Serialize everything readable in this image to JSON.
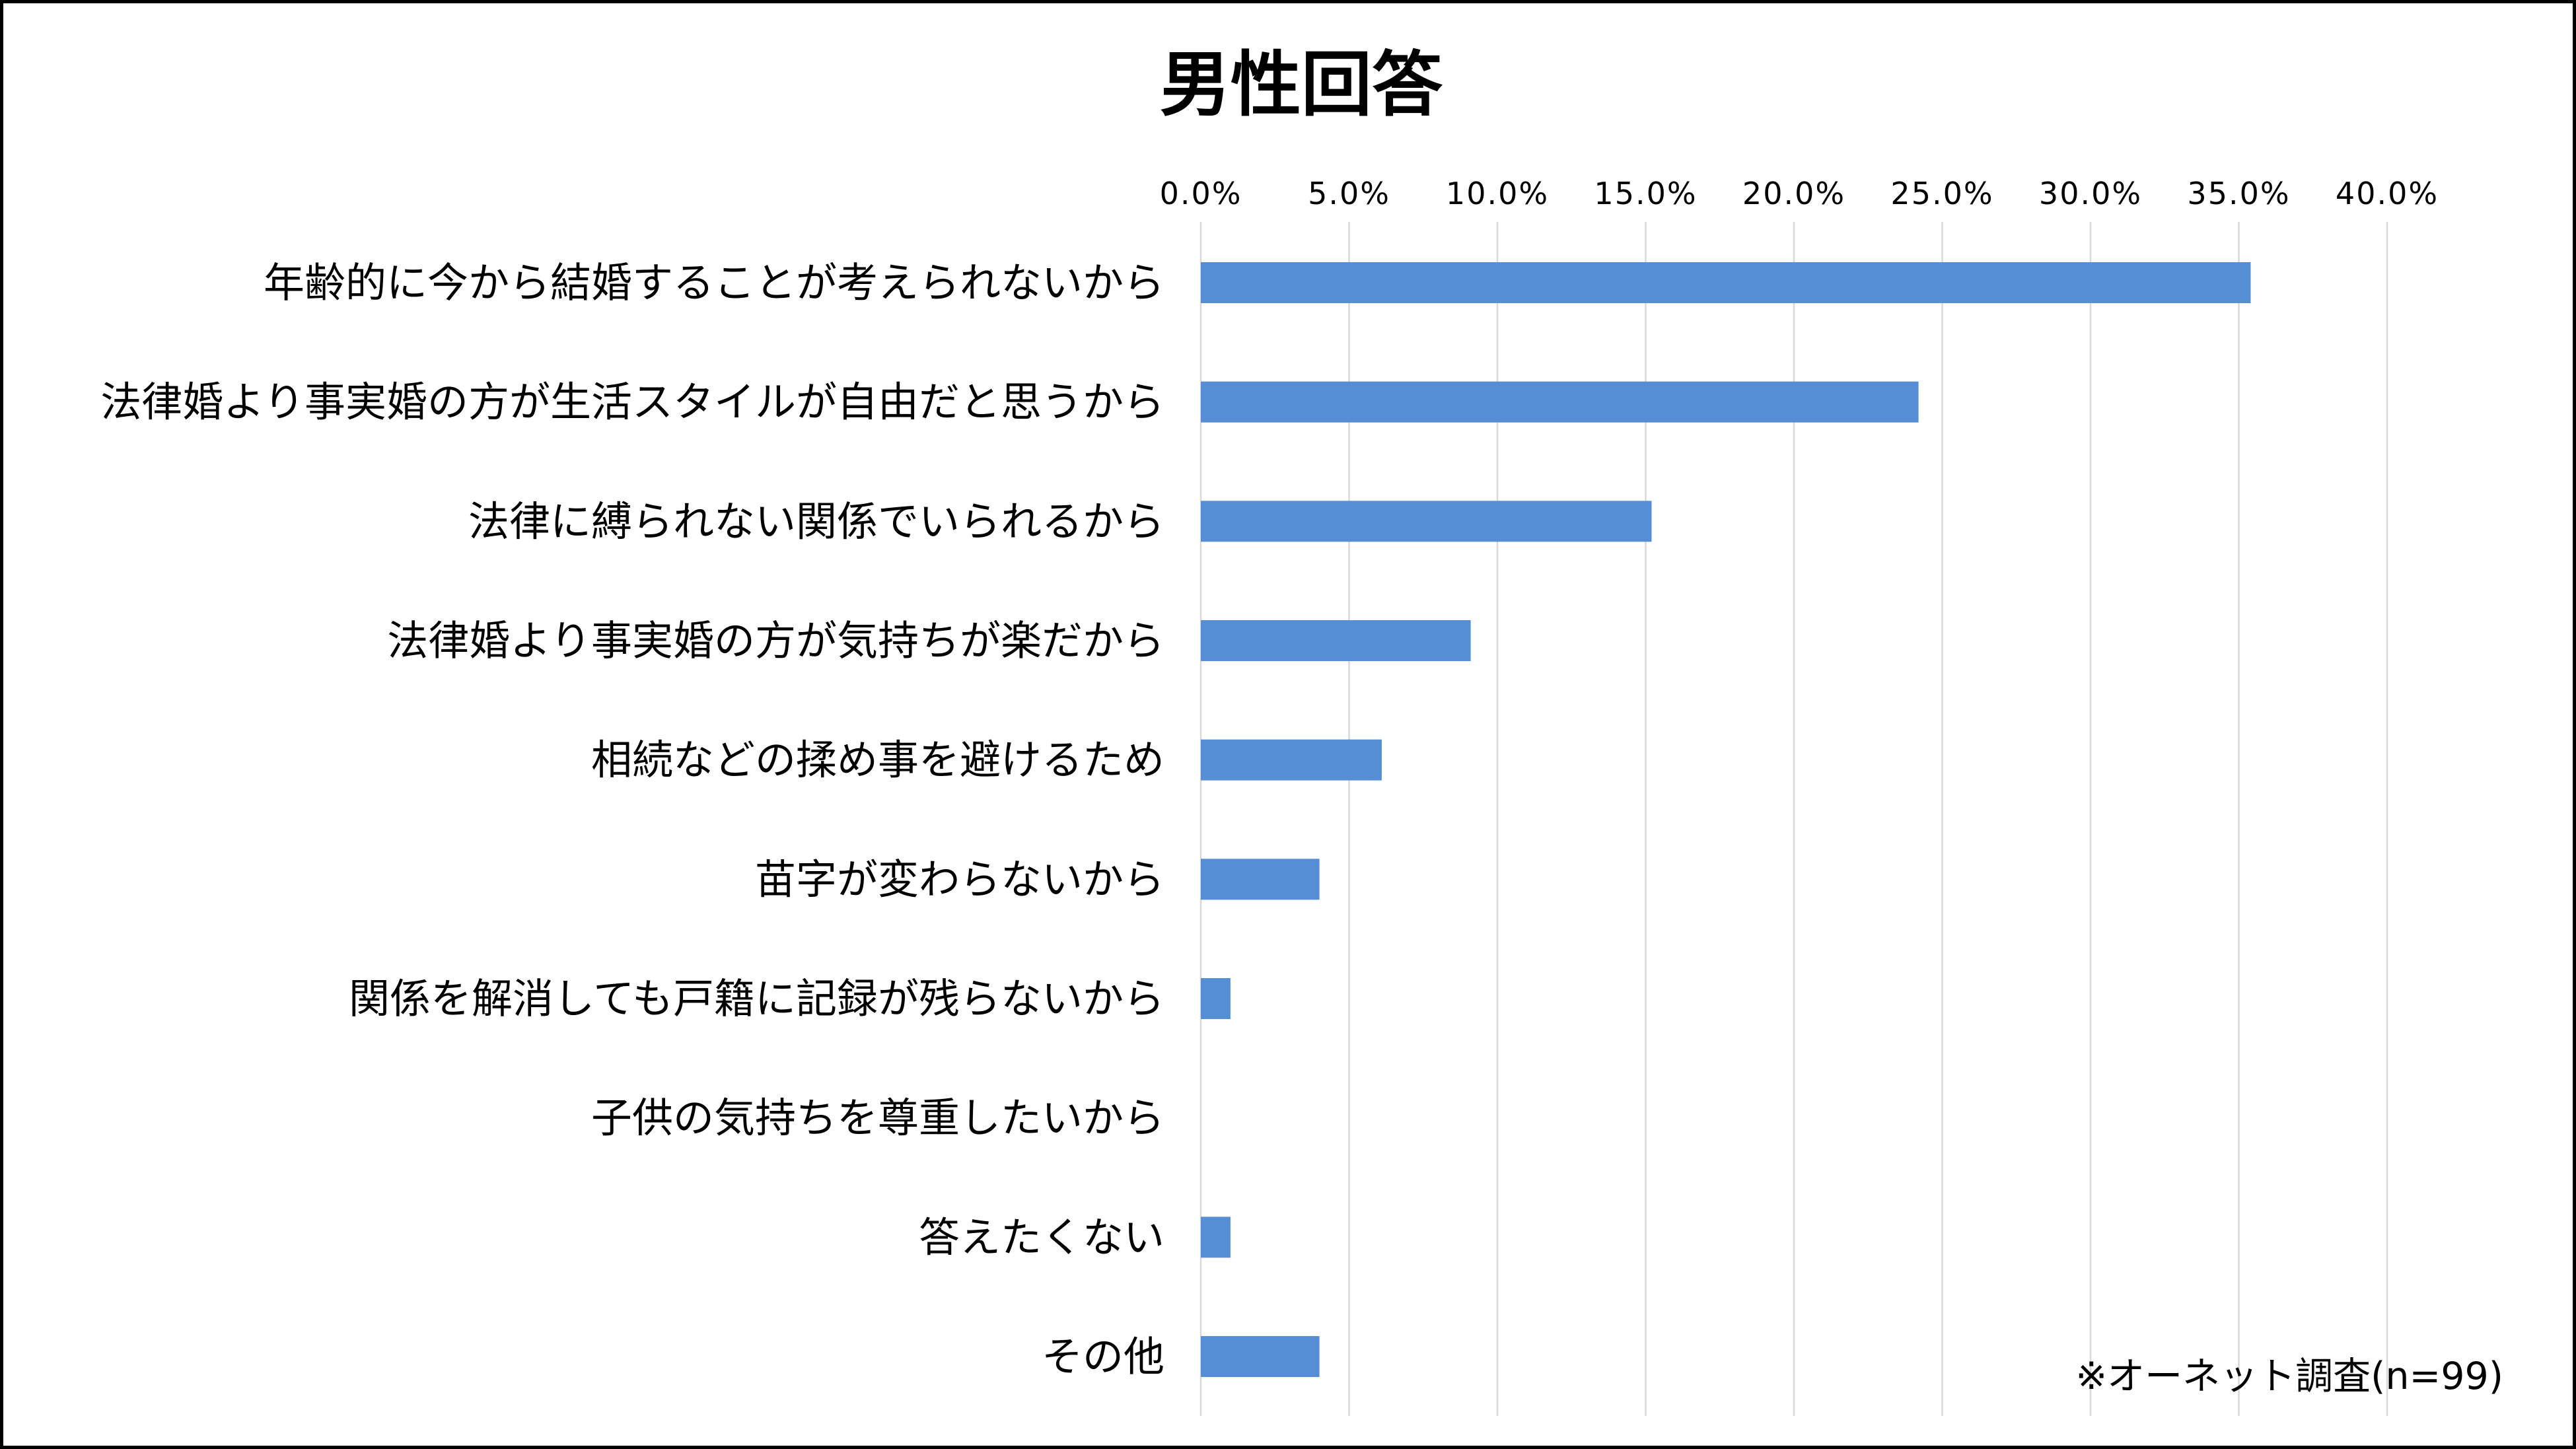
{
  "chart_data": {
    "type": "bar",
    "orientation": "horizontal",
    "title": "男性回答",
    "categories": [
      "年齢的に今から結婚することが考えられないから",
      "法律婚より事実婚の方が生活スタイルが自由だと思うから",
      "法律に縛られない関係でいられるから",
      "法律婚より事実婚の方が気持ちが楽だから",
      "相続などの揉め事を避けるため",
      "苗字が変わらないから",
      "関係を解消しても戸籍に記録が残らないから",
      "子供の気持ちを尊重したいから",
      "答えたくない",
      "その他"
    ],
    "values": [
      35.4,
      24.2,
      15.2,
      9.1,
      6.1,
      4.0,
      1.0,
      0.0,
      1.0,
      4.0
    ],
    "value_unit": "%",
    "xlim": [
      0,
      40
    ],
    "x_ticks": [
      0,
      5,
      10,
      15,
      20,
      25,
      30,
      35,
      40
    ],
    "x_tick_labels": [
      "0.0%",
      "5.0%",
      "10.0%",
      "15.0%",
      "20.0%",
      "25.0%",
      "30.0%",
      "35.0%",
      "40.0%"
    ],
    "x_axis_position": "top",
    "grid": true,
    "legend": "none",
    "bar_color": "#558ed5",
    "note": "※オーネット調査(n=99)"
  }
}
